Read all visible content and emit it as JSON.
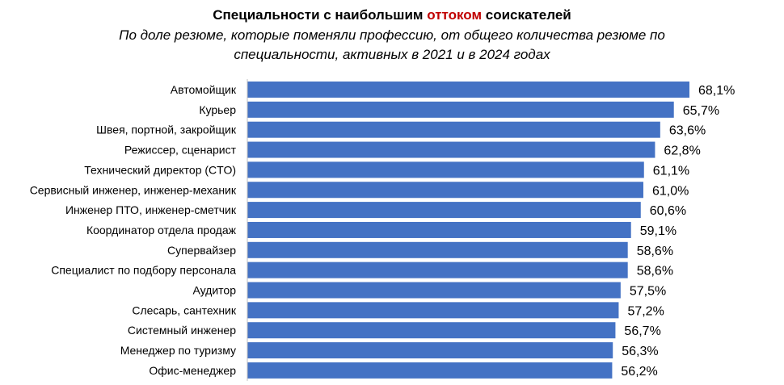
{
  "title": {
    "prefix": "Специальности с наибольшим ",
    "highlight": "оттоком",
    "suffix": " соискателей",
    "highlight_color": "#c00000"
  },
  "subtitle": "По доле резюме, которые поменяли профессию, от общего количества резюме по специальности, активных в 2021 и в 2024 годах",
  "colors": {
    "bar": "#4472c4"
  },
  "chart_data": {
    "type": "bar",
    "orientation": "horizontal",
    "categories": [
      "Автомойщик",
      "Курьер",
      "Швея, портной, закройщик",
      "Режиссер, сценарист",
      "Технический директор (CTO)",
      "Сервисный инженер, инженер-механик",
      "Инженер ПТО, инженер-сметчик",
      "Координатор отдела продаж",
      "Супервайзер",
      "Специалист по подбору персонала",
      "Аудитор",
      "Слесарь, сантехник",
      "Системный инженер",
      "Менеджер по туризму",
      "Офис-менеджер"
    ],
    "values": [
      68.1,
      65.7,
      63.6,
      62.8,
      61.1,
      61.0,
      60.6,
      59.1,
      58.6,
      58.6,
      57.5,
      57.2,
      56.7,
      56.3,
      56.2
    ],
    "value_labels": [
      "68,1%",
      "65,7%",
      "63,6%",
      "62,8%",
      "61,1%",
      "61,0%",
      "60,6%",
      "59,1%",
      "58,6%",
      "58,6%",
      "57,5%",
      "57,2%",
      "56,7%",
      "56,3%",
      "56,2%"
    ],
    "xlim": [
      0,
      68.1
    ],
    "grid": false,
    "legend": "none"
  }
}
